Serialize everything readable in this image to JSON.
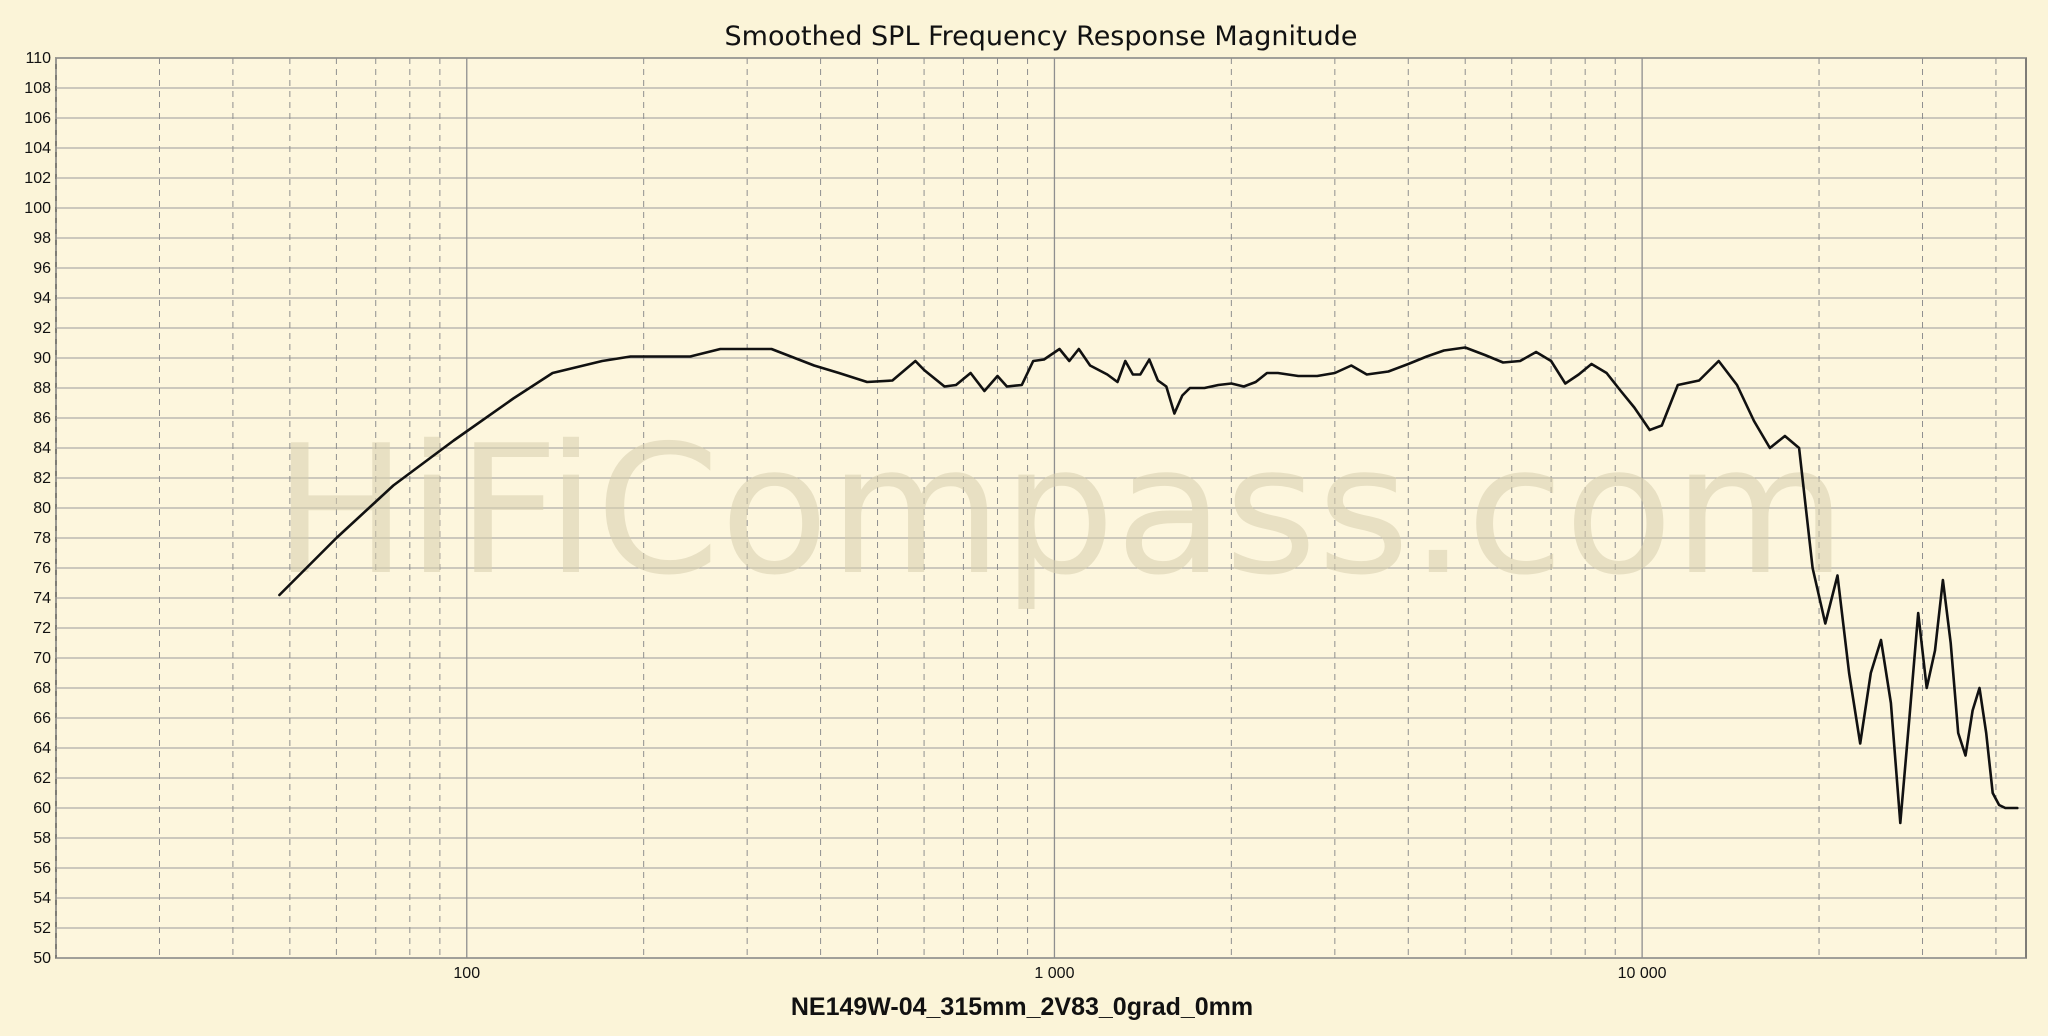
{
  "chart_data": {
    "type": "line",
    "title": "Smoothed SPL Frequency Response Magnitude",
    "xlabel": "NE149W-04_315mm_2V83_0grad_0mm",
    "ylabel": "",
    "xscale": "log",
    "xlim": [
      20,
      45000
    ],
    "ylim": [
      50,
      110
    ],
    "grid": true,
    "watermark": "HiFiCompass.com",
    "x_tick_labels": [
      "100",
      "1 000",
      "10 000"
    ],
    "x_ticks": [
      100,
      1000,
      10000
    ],
    "y_ticks": [
      50,
      52,
      54,
      56,
      58,
      60,
      62,
      64,
      66,
      68,
      70,
      72,
      74,
      76,
      78,
      80,
      82,
      84,
      86,
      88,
      90,
      92,
      94,
      96,
      98,
      100,
      102,
      104,
      106,
      108,
      110
    ],
    "line_color": "#111111",
    "series": [
      {
        "x": [
          48,
          60,
          75,
          95,
          120,
          140,
          170,
          190,
          240,
          270,
          330,
          390,
          430,
          480,
          530,
          580,
          600,
          650,
          680,
          720,
          760,
          800,
          830,
          880,
          920,
          960,
          1020,
          1060,
          1100,
          1150,
          1230,
          1280,
          1320,
          1360,
          1400,
          1450,
          1500,
          1550,
          1600,
          1650,
          1700,
          1800,
          1900,
          2000,
          2100,
          2200,
          2300,
          2400,
          2600,
          2800,
          3000,
          3200,
          3400,
          3700,
          4000,
          4300,
          4600,
          5000,
          5400,
          5800,
          6200,
          6600,
          7000,
          7400,
          7800,
          8200,
          8700,
          9200,
          9700,
          10300,
          10800,
          11500,
          12500,
          13500,
          14500,
          15500,
          16500,
          17500,
          18500,
          19500,
          20500,
          21500,
          22500,
          23500,
          24500,
          25500,
          26500,
          27500,
          28500,
          29500,
          30500,
          31500,
          32500,
          33500,
          34500,
          35500,
          36500,
          37500,
          38500,
          39500,
          40500,
          41500,
          42500,
          43500
        ],
        "y": [
          74.2,
          78.0,
          81.5,
          84.5,
          87.3,
          89.0,
          89.8,
          90.1,
          90.1,
          90.6,
          90.6,
          89.5,
          89.0,
          88.4,
          88.5,
          89.8,
          89.2,
          88.1,
          88.2,
          89.0,
          87.8,
          88.8,
          88.1,
          88.2,
          89.8,
          89.9,
          90.6,
          89.8,
          90.6,
          89.5,
          88.9,
          88.4,
          89.8,
          88.9,
          88.9,
          89.9,
          88.5,
          88.1,
          86.3,
          87.5,
          88.0,
          88.0,
          88.2,
          88.3,
          88.1,
          88.4,
          89.0,
          89.0,
          88.8,
          88.8,
          89.0,
          89.5,
          88.9,
          89.1,
          89.6,
          90.1,
          90.5,
          90.7,
          90.2,
          89.7,
          89.8,
          90.4,
          89.8,
          88.3,
          88.9,
          89.6,
          89.0,
          87.8,
          86.7,
          85.2,
          85.5,
          88.2,
          88.5,
          89.8,
          88.2,
          85.8,
          84.0,
          84.8,
          84.0,
          76.0,
          72.3,
          75.5,
          69.0,
          64.3,
          69.0,
          71.2,
          67.0,
          59.0,
          66.0,
          73.0,
          68.0,
          70.5,
          75.2,
          71.0,
          65.0,
          63.5,
          66.5,
          68.0,
          65.0,
          61.0,
          60.2,
          60.0,
          60.0,
          60.0
        ]
      }
    ]
  }
}
